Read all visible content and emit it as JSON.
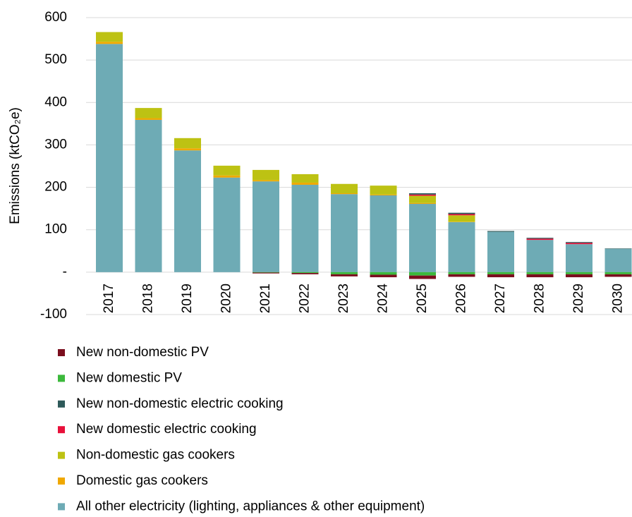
{
  "chart_data": {
    "type": "stacked-bar",
    "y_label": "Emissions (ktCO₂e)",
    "categories": [
      "2017",
      "2018",
      "2019",
      "2020",
      "2021",
      "2022",
      "2023",
      "2024",
      "2025",
      "2026",
      "2027",
      "2028",
      "2029",
      "2030"
    ],
    "ylim": [
      -100,
      600
    ],
    "yticks": [
      -100,
      {
        "value": 0,
        "label": "-"
      },
      100,
      200,
      300,
      400,
      500,
      600
    ],
    "grid": true,
    "legend": "bottom",
    "series": [
      {
        "name": "New non-domestic PV",
        "color": "#7b0e1e",
        "values": [
          0,
          0,
          0,
          0,
          -2,
          -3,
          -5,
          -6,
          -8,
          -6,
          -7,
          -7,
          -7,
          -6
        ]
      },
      {
        "name": "New domestic PV",
        "color": "#3cb93c",
        "values": [
          0,
          0,
          0,
          0,
          -1,
          -2,
          -5,
          -6,
          -8,
          -5,
          -5,
          -5,
          -5,
          -5
        ]
      },
      {
        "name": "New non-domestic electric cooking",
        "color": "#2e5a5a",
        "values": [
          0,
          0,
          0,
          0,
          0,
          0,
          0,
          0,
          3,
          3,
          2,
          2,
          2,
          1
        ]
      },
      {
        "name": "New domestic electric cooking",
        "color": "#e8103a",
        "values": [
          0,
          0,
          0,
          0,
          0,
          0,
          0,
          0,
          3,
          3,
          0,
          3,
          3,
          0
        ]
      },
      {
        "name": "Non-domestic gas cookers",
        "color": "#bdc213",
        "values": [
          23,
          24,
          24,
          23,
          24,
          20,
          22,
          21,
          17,
          15,
          0,
          0,
          0,
          0
        ]
      },
      {
        "name": "Domestic gas cookers",
        "color": "#f0a800",
        "values": [
          5,
          4,
          5,
          5,
          3,
          5,
          2,
          2,
          2,
          1,
          0,
          0,
          0,
          0
        ]
      },
      {
        "name": "All other electricity (lighting, appliances & other equipment)",
        "color": "#6eabb5",
        "values": [
          538,
          359,
          287,
          223,
          214,
          206,
          184,
          181,
          161,
          118,
          95,
          76,
          66,
          55
        ]
      }
    ]
  }
}
